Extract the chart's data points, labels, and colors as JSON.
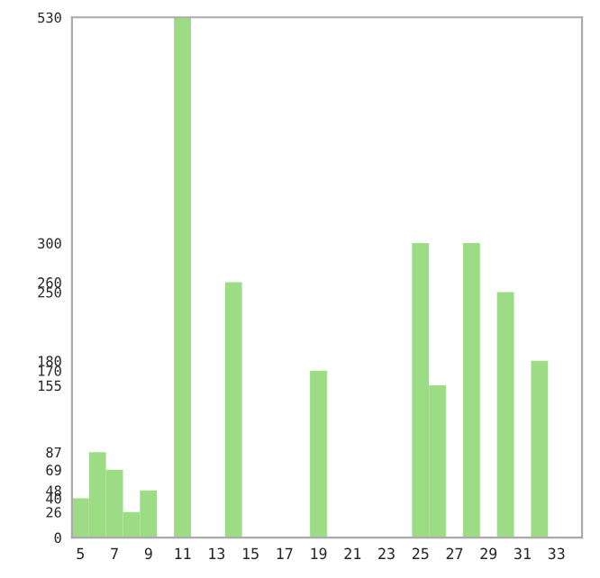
{
  "chart_data": {
    "type": "bar",
    "categories": [
      "5",
      null,
      "7",
      null,
      "9",
      null,
      "11",
      null,
      "13",
      null,
      "15",
      null,
      "17",
      null,
      "19",
      null,
      "21",
      null,
      "23",
      null,
      "25",
      null,
      "27",
      null,
      "29",
      null,
      "31",
      null,
      "33",
      null
    ],
    "values": [
      40,
      87,
      69,
      26,
      48,
      0,
      530,
      0,
      0,
      260,
      0,
      0,
      0,
      0,
      170,
      0,
      0,
      0,
      0,
      0,
      300,
      155,
      0,
      300,
      0,
      250,
      0,
      180,
      0,
      0
    ],
    "color": "#9cdc84",
    "ylim": [
      0,
      530
    ],
    "yticks": [
      0,
      26,
      40,
      48,
      69,
      87,
      155,
      170,
      180,
      250,
      260,
      300,
      530
    ],
    "grid": false,
    "legend": false
  }
}
